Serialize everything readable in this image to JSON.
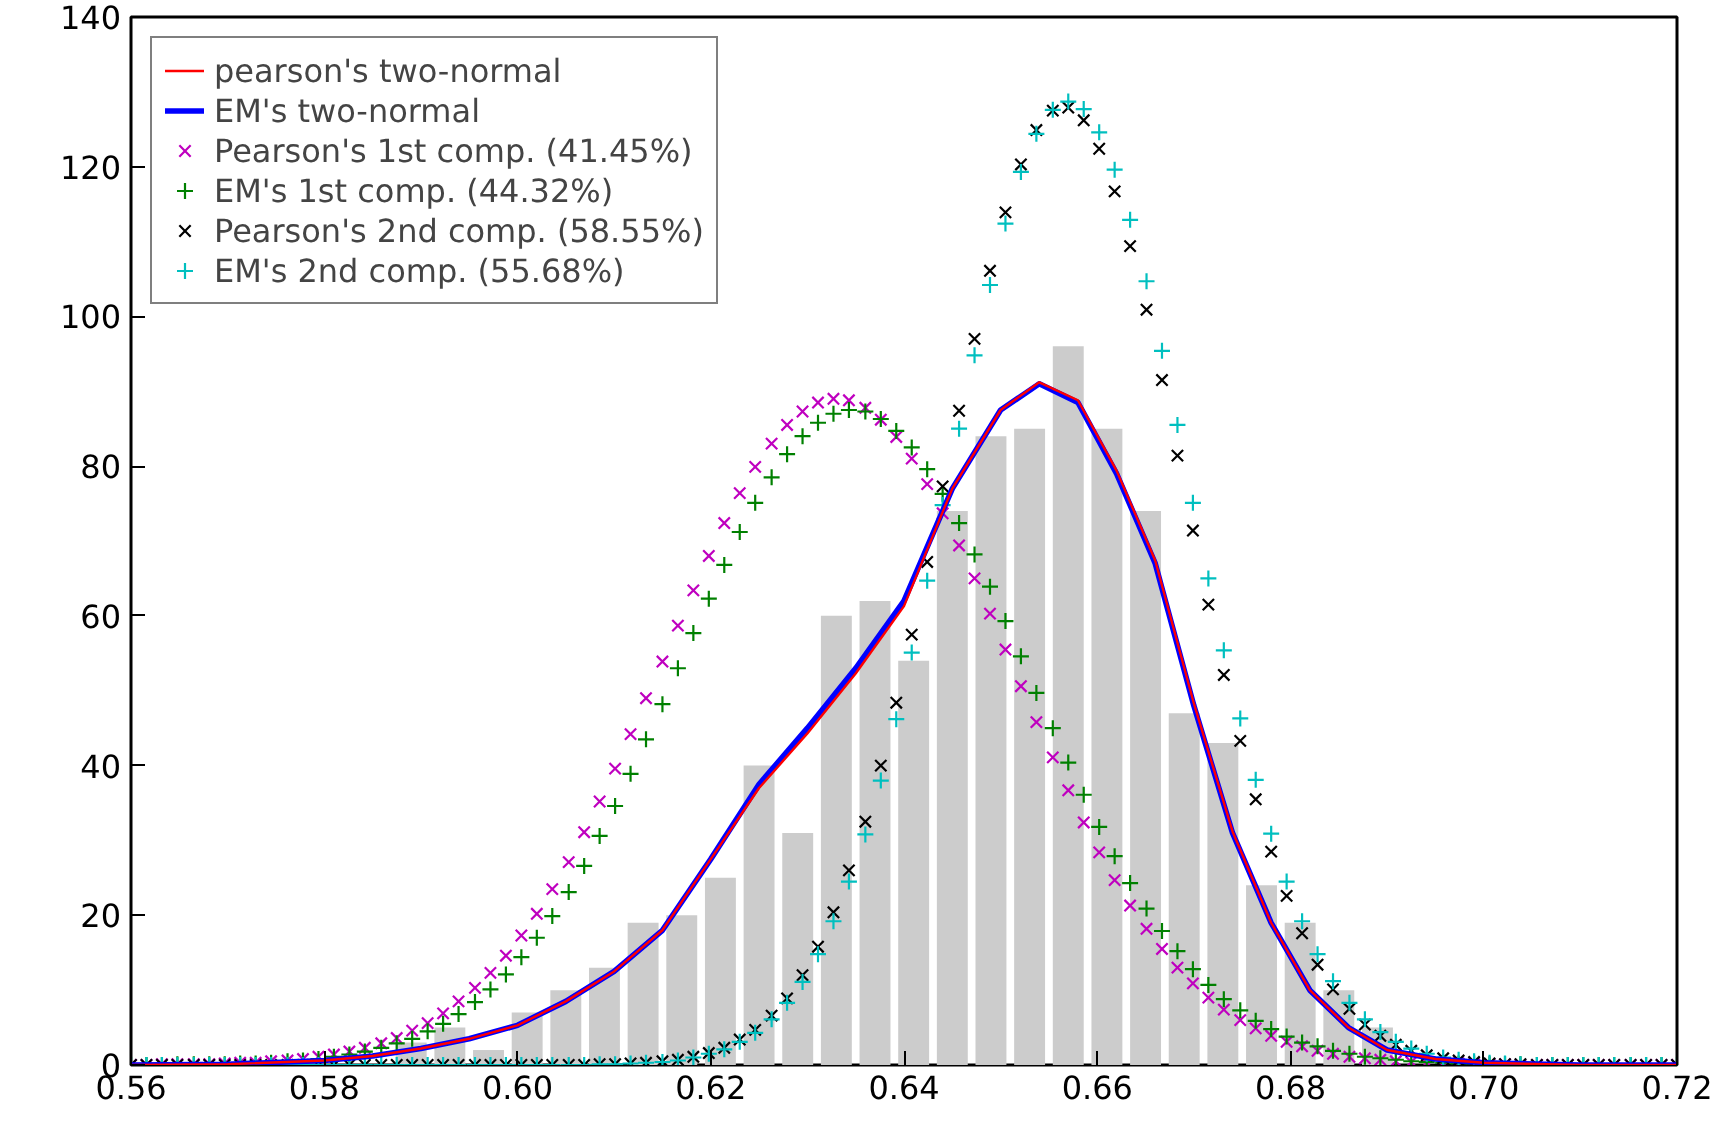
{
  "chart_data": {
    "type": "histogram",
    "bins": [
      0.587,
      0.591,
      0.595,
      0.599,
      0.603,
      0.607,
      0.611,
      0.615,
      0.619,
      0.623,
      0.627,
      0.631,
      0.635,
      0.639,
      0.643,
      0.647,
      0.651,
      0.655,
      0.659,
      0.663,
      0.667,
      0.671,
      0.675,
      0.679,
      0.683,
      0.687,
      0.691
    ],
    "values": [
      3,
      5,
      2,
      7,
      10,
      13,
      19,
      20,
      25,
      40,
      31,
      60,
      62,
      54,
      74,
      84,
      85,
      96,
      85,
      74,
      47,
      43,
      24,
      19,
      10,
      5
    ],
    "color": "#cccccc",
    "x": [
      0.56,
      0.5616,
      0.5632,
      0.5648,
      0.5665,
      0.5681,
      0.5697,
      0.5713,
      0.5729,
      0.5745,
      0.5762,
      0.5778,
      0.5794,
      0.581,
      0.5826,
      0.5842,
      0.5859,
      0.5875,
      0.5891,
      0.5907,
      0.5923,
      0.5939,
      0.5956,
      0.5972,
      0.5988,
      0.6004,
      0.602,
      0.6036,
      0.6053,
      0.6069,
      0.6085,
      0.6101,
      0.6117,
      0.6133,
      0.615,
      0.6166,
      0.6182,
      0.6198,
      0.6214,
      0.623,
      0.6246,
      0.6263,
      0.6279,
      0.6295,
      0.6311,
      0.6327,
      0.6343,
      0.636,
      0.6376,
      0.6392,
      0.6408,
      0.6424,
      0.644,
      0.6457,
      0.6473,
      0.6489,
      0.6505,
      0.6521,
      0.6537,
      0.6554,
      0.657,
      0.6586,
      0.6602,
      0.6618,
      0.6634,
      0.6651,
      0.6667,
      0.6683,
      0.6699,
      0.6715,
      0.6731,
      0.6748,
      0.6764,
      0.678,
      0.6796,
      0.6812,
      0.6828,
      0.6844,
      0.6861,
      0.6877,
      0.6893,
      0.6909,
      0.6925,
      0.6941,
      0.6958,
      0.6974,
      0.699,
      0.7006,
      0.7022,
      0.7038,
      0.7055,
      0.7071,
      0.7087,
      0.7103,
      0.7119,
      0.7135,
      0.7152,
      0.7168,
      0.7184,
      0.72
    ],
    "series": [
      {
        "name": "pearson's two-normal",
        "type": "line",
        "color": "#ff0000",
        "x": [
          0.56,
          0.57,
          0.58,
          0.585,
          0.59,
          0.595,
          0.6,
          0.605,
          0.61,
          0.615,
          0.62,
          0.625,
          0.63,
          0.635,
          0.64,
          0.645,
          0.65,
          0.654,
          0.658,
          0.662,
          0.666,
          0.67,
          0.674,
          0.678,
          0.682,
          0.686,
          0.69,
          0.695,
          0.7,
          0.71,
          0.72
        ],
        "values": [
          0,
          0.1,
          0.6,
          1.2,
          2.2,
          3.5,
          5.3,
          8.5,
          12.5,
          18,
          27.5,
          37,
          44.3,
          52.3,
          61.3,
          77,
          87.5,
          91.2,
          88.8,
          79.4,
          67.4,
          48.3,
          31.2,
          19,
          10,
          5,
          2,
          0.8,
          0.3,
          0,
          0
        ]
      },
      {
        "name": "EM's two-normal",
        "type": "line",
        "color": "#0000ff",
        "x": [
          0.56,
          0.57,
          0.58,
          0.585,
          0.59,
          0.595,
          0.6,
          0.605,
          0.61,
          0.615,
          0.62,
          0.625,
          0.63,
          0.635,
          0.64,
          0.645,
          0.65,
          0.654,
          0.658,
          0.662,
          0.666,
          0.67,
          0.674,
          0.678,
          0.682,
          0.686,
          0.69,
          0.695,
          0.7,
          0.71,
          0.72
        ],
        "values": [
          0,
          0.1,
          0.6,
          1.2,
          2.2,
          3.5,
          5.3,
          8.5,
          12.5,
          18,
          27.5,
          37.5,
          45,
          53,
          62,
          77,
          87.5,
          91,
          88.5,
          79,
          67,
          48,
          31,
          19,
          10,
          5,
          2,
          0.8,
          0.3,
          0,
          0
        ]
      },
      {
        "name": "Pearson's 1st comp. (41.45%)",
        "type": "scatter",
        "marker": "x",
        "color": "#bf00bf",
        "values": [
          0,
          0,
          0.1,
          0.1,
          0.1,
          0.1,
          0.2,
          0.3,
          0.3,
          0.5,
          0.6,
          0.8,
          1.1,
          1.4,
          1.8,
          2.3,
          2.9,
          3.6,
          4.6,
          5.6,
          6.9,
          8.5,
          10.3,
          12.3,
          14.6,
          17.3,
          20.2,
          23.5,
          27.1,
          31.1,
          35.2,
          39.6,
          44.2,
          49.0,
          53.9,
          58.7,
          63.4,
          68.0,
          72.4,
          76.4,
          79.9,
          83.0,
          85.5,
          87.3,
          88.5,
          89.0,
          88.8,
          87.8,
          86.2,
          83.9,
          81.0,
          77.6,
          73.7,
          69.4,
          65.0,
          60.3,
          55.5,
          50.6,
          45.8,
          41.1,
          36.7,
          32.4,
          28.4,
          24.7,
          21.3,
          18.2,
          15.5,
          13.0,
          10.9,
          9.0,
          7.4,
          6.0,
          4.9,
          3.9,
          3.1,
          2.5,
          1.9,
          1.5,
          1.1,
          0.9,
          0.7,
          0.5,
          0.4,
          0.3,
          0.2,
          0.2,
          0.1,
          0.1,
          0.1,
          0,
          0,
          0,
          0,
          0,
          0,
          0,
          0,
          0,
          0,
          0
        ]
      },
      {
        "name": "EM's 1st comp. (44.32%)",
        "type": "scatter",
        "marker": "cross",
        "color": "#008000",
        "values": [
          0,
          0,
          0,
          0.1,
          0.1,
          0.1,
          0.1,
          0.2,
          0.2,
          0.3,
          0.5,
          0.6,
          0.8,
          1.1,
          1.4,
          1.8,
          2.3,
          2.9,
          3.5,
          4.5,
          5.5,
          6.8,
          8.4,
          10.1,
          12.1,
          14.4,
          17.0,
          19.9,
          23.1,
          26.6,
          30.6,
          34.6,
          38.9,
          43.5,
          48.2,
          53.0,
          57.7,
          62.3,
          66.8,
          71.2,
          75.1,
          78.5,
          81.6,
          84.0,
          85.8,
          87.0,
          87.5,
          87.3,
          86.3,
          84.7,
          82.5,
          79.6,
          76.3,
          72.4,
          68.2,
          63.9,
          59.3,
          54.6,
          49.7,
          45.0,
          40.4,
          36.1,
          31.8,
          27.9,
          24.3,
          20.9,
          17.9,
          15.2,
          12.8,
          10.7,
          8.8,
          7.3,
          5.9,
          4.8,
          3.8,
          3.0,
          2.5,
          1.9,
          1.5,
          1.1,
          0.9,
          0.7,
          0.5,
          0.4,
          0.3,
          0.2,
          0.2,
          0.1,
          0.1,
          0.1,
          0,
          0,
          0,
          0,
          0,
          0,
          0,
          0,
          0,
          0
        ]
      },
      {
        "name": "Pearson's 2nd comp. (58.55%)",
        "type": "scatter",
        "marker": "x",
        "color": "#000000",
        "values": [
          0,
          0,
          0,
          0,
          0,
          0,
          0,
          0,
          0,
          0,
          0,
          0,
          0,
          0,
          0,
          0,
          0,
          0,
          0,
          0,
          0,
          0,
          0,
          0,
          0,
          0,
          0,
          0,
          0,
          0,
          0.1,
          0.1,
          0.2,
          0.3,
          0.5,
          0.7,
          1.1,
          1.6,
          2.3,
          3.4,
          4.7,
          6.6,
          8.9,
          12.0,
          15.8,
          20.4,
          26.0,
          32.5,
          40.0,
          48.4,
          57.5,
          67.2,
          77.3,
          87.4,
          97.0,
          106.1,
          113.9,
          120.3,
          124.9,
          127.5,
          127.9,
          126.2,
          122.4,
          116.7,
          109.4,
          100.9,
          91.5,
          81.4,
          71.4,
          61.5,
          52.1,
          43.3,
          35.5,
          28.5,
          22.6,
          17.6,
          13.4,
          10.1,
          7.5,
          5.4,
          3.9,
          2.7,
          1.9,
          1.3,
          0.9,
          0.6,
          0.4,
          0.2,
          0.1,
          0.1,
          0,
          0,
          0,
          0,
          0,
          0,
          0,
          0,
          0,
          0
        ]
      },
      {
        "name": "EM's 2nd comp. (55.68%)",
        "type": "scatter",
        "marker": "cross",
        "color": "#00bfbf",
        "values": [
          0,
          0,
          0,
          0,
          0,
          0,
          0,
          0,
          0,
          0,
          0,
          0,
          0,
          0,
          0,
          0,
          0,
          0,
          0,
          0,
          0,
          0,
          0,
          0,
          0,
          0,
          0,
          0,
          0,
          0,
          0.1,
          0.1,
          0.2,
          0.3,
          0.4,
          0.6,
          1.0,
          1.5,
          2.1,
          3.1,
          4.3,
          6.1,
          8.3,
          11.1,
          14.8,
          19.2,
          24.5,
          30.8,
          38.0,
          46.2,
          55.1,
          64.7,
          74.8,
          85.0,
          94.8,
          104.2,
          112.4,
          119.3,
          124.4,
          127.6,
          128.7,
          127.7,
          124.6,
          119.6,
          112.9,
          104.7,
          95.4,
          85.5,
          75.1,
          65.0,
          55.4,
          46.3,
          38.1,
          30.9,
          24.5,
          19.2,
          14.8,
          11.2,
          8.3,
          6.1,
          4.4,
          3.1,
          2.2,
          1.5,
          1.0,
          0.7,
          0.5,
          0.3,
          0.2,
          0.1,
          0,
          0,
          0,
          0,
          0,
          0,
          0,
          0,
          0,
          0
        ]
      }
    ],
    "xlim": [
      0.56,
      0.72
    ],
    "ylim": [
      0,
      140
    ],
    "xticks": [
      0.56,
      0.58,
      {
        "value": 0.6,
        "label": "0.60"
      },
      0.62,
      0.64,
      0.66,
      0.68,
      {
        "value": 0.7,
        "label": "0.70"
      },
      0.72
    ],
    "yticks": [
      0,
      20,
      40,
      60,
      80,
      100,
      120,
      140
    ],
    "grid": false,
    "legend": "top left"
  }
}
